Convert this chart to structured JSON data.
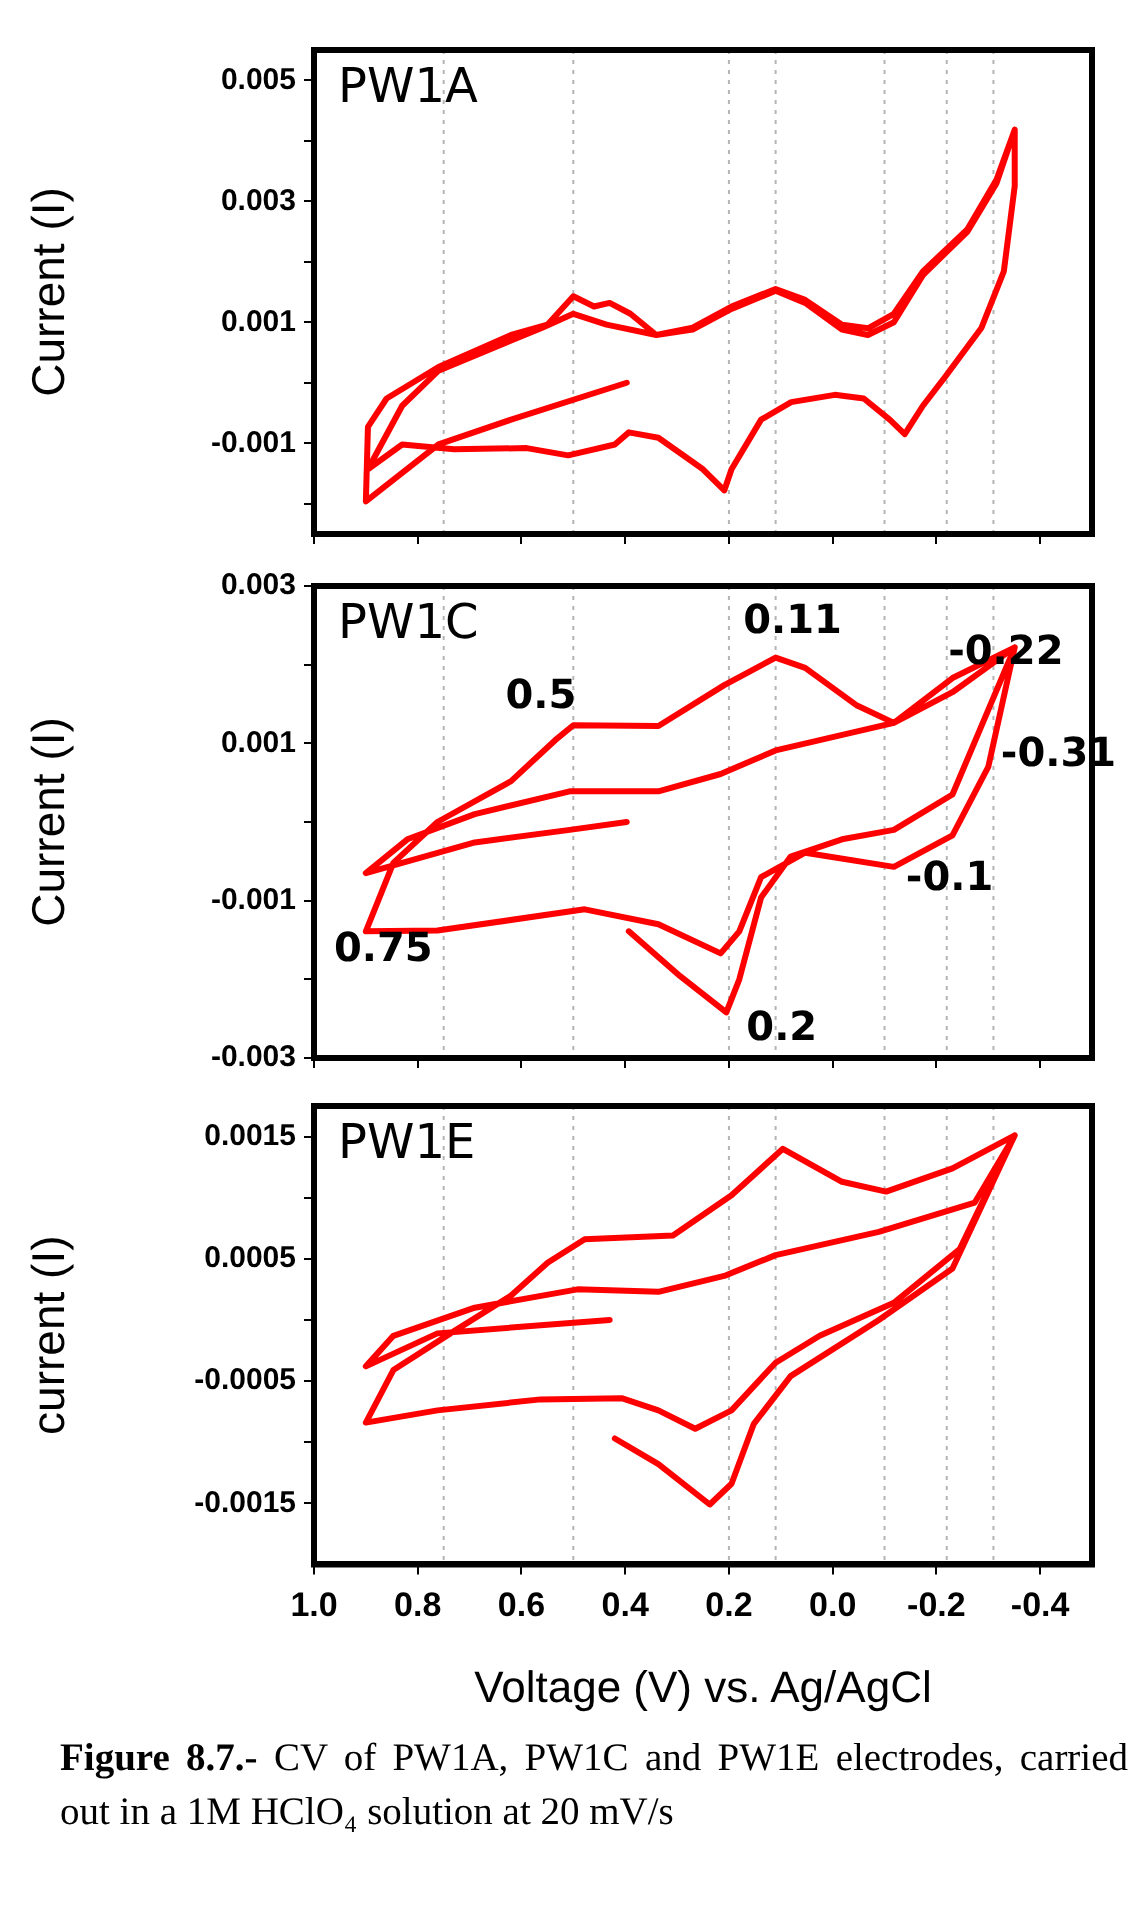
{
  "chart_data": [
    {
      "type": "line",
      "title": "PW1A",
      "ylabel": "Current (I)",
      "xlim": [
        1.0,
        -0.5
      ],
      "ylim": [
        -0.0025,
        0.0055
      ],
      "xticks": [
        1,
        0.8,
        0.6,
        0.4,
        0.2,
        0,
        -0.2,
        -0.4
      ],
      "yticks": [
        0.005,
        {
          "value": 0.004,
          "label": null
        },
        0.003,
        {
          "value": 0.002,
          "label": null
        },
        0.001,
        {
          "value": 0,
          "label": null
        },
        -0.001,
        {
          "value": -0.002,
          "label": null
        }
      ],
      "tick_labels": "y",
      "grid": false,
      "legend": false,
      "marker": "none",
      "line_style": "solid",
      "ref_lines": [
        {
          "axis": "x",
          "value": 0.75,
          "color": "#b4b4b4",
          "line_style": "dotted"
        },
        {
          "axis": "x",
          "value": 0.5,
          "color": "#b4b4b4",
          "line_style": "dotted"
        },
        {
          "axis": "x",
          "value": 0.2,
          "color": "#b4b4b4",
          "line_style": "dotted"
        },
        {
          "axis": "x",
          "value": 0.11,
          "color": "#b4b4b4",
          "line_style": "dotted"
        },
        {
          "axis": "x",
          "value": -0.1,
          "color": "#b4b4b4",
          "line_style": "dotted"
        },
        {
          "axis": "x",
          "value": -0.22,
          "color": "#b4b4b4",
          "line_style": "dotted"
        },
        {
          "axis": "x",
          "value": -0.31,
          "color": "#b4b4b4",
          "line_style": "dotted"
        }
      ],
      "series": [
        {
          "color": "#ff0000",
          "x": [
            0.397,
            0.62,
            0.76,
            0.9,
            0.896,
            0.86,
            0.76,
            0.62,
            0.55,
            0.5,
            0.46,
            0.43,
            0.39,
            0.34,
            0.27,
            0.195,
            0.11,
            0.053,
            -0.018,
            -0.068,
            -0.118,
            -0.174,
            -0.26,
            -0.316,
            -0.351,
            -0.351,
            -0.33,
            -0.287,
            -0.217,
            -0.174,
            -0.139,
            -0.11,
            -0.06,
            -0.004,
            0.08,
            0.138,
            0.195,
            0.209,
            0.25,
            0.336,
            0.393,
            0.42,
            0.51,
            0.59,
            0.73,
            0.83,
            0.896,
            0.83,
            0.76,
            0.56,
            0.5,
            0.436,
            0.34,
            0.27,
            0.195,
            0.11,
            0.053,
            -0.018,
            -0.068,
            -0.118,
            -0.174,
            -0.26,
            -0.316,
            -0.351
          ],
          "values": [
            0,
            -0.00061,
            -0.00102,
            -0.00196,
            -0.00073,
            -0.00026,
            0.00026,
            0.00079,
            0.00096,
            0.00143,
            0.00126,
            0.00132,
            0.00114,
            0.00079,
            0.00091,
            0.00126,
            0.00155,
            0.00137,
            0.00096,
            0.0009,
            0.00114,
            0.00184,
            0.00254,
            0.00336,
            0.00418,
            0.00325,
            0.00184,
            0.00091,
            0.0001,
            -0.00038,
            -0.00085,
            -0.00061,
            -0.00026,
            -0.0002,
            -0.00032,
            -0.00061,
            -0.00143,
            -0.00178,
            -0.00143,
            -0.00091,
            -0.00082,
            -0.00102,
            -0.0012,
            -0.00108,
            -0.0011,
            -0.00102,
            -0.00143,
            -0.00038,
            0.0002,
            0.00091,
            0.00114,
            0.00096,
            0.00079,
            0.00088,
            0.00122,
            0.00152,
            0.00132,
            0.00088,
            0.00079,
            0.001,
            0.00178,
            0.0025,
            0.0033,
            0.00418
          ]
        }
      ]
    },
    {
      "type": "line",
      "title": "PW1C",
      "ylabel": "Current (I)",
      "xlim": [
        1.0,
        -0.5
      ],
      "ylim": [
        -0.003,
        0.003
      ],
      "xticks": [
        1,
        0.8,
        0.6,
        0.4,
        0.2,
        0,
        -0.2,
        -0.4
      ],
      "yticks": [
        0.003,
        {
          "value": 0.002,
          "label": null
        },
        0.001,
        {
          "value": 0,
          "label": null
        },
        -0.001,
        {
          "value": -0.002,
          "label": null
        },
        -0.003
      ],
      "tick_labels": "y",
      "grid": false,
      "legend": false,
      "marker": "none",
      "line_style": "solid",
      "ref_lines": [
        {
          "axis": "x",
          "value": 0.75,
          "color": "#b4b4b4",
          "line_style": "dotted"
        },
        {
          "axis": "x",
          "value": 0.5,
          "color": "#b4b4b4",
          "line_style": "dotted"
        },
        {
          "axis": "x",
          "value": 0.2,
          "color": "#b4b4b4",
          "line_style": "dotted"
        },
        {
          "axis": "x",
          "value": 0.11,
          "color": "#b4b4b4",
          "line_style": "dotted"
        },
        {
          "axis": "x",
          "value": -0.1,
          "color": "#b4b4b4",
          "line_style": "dotted"
        },
        {
          "axis": "x",
          "value": -0.22,
          "color": "#b4b4b4",
          "line_style": "dotted"
        },
        {
          "axis": "x",
          "value": -0.31,
          "color": "#b4b4b4",
          "line_style": "dotted"
        }
      ],
      "annotations": [
        {
          "text": "0.5",
          "x": 0.5,
          "y": 0.00123
        },
        {
          "text": "0.11",
          "x": 0.11,
          "y": 0.00209
        },
        {
          "text": "-0.22",
          "x": -0.231,
          "y": 0.00183
        },
        {
          "text": "-0.31",
          "x": -0.3,
          "y": 0.0007
        },
        {
          "text": "-0.1",
          "x": -0.118,
          "y": -0.00057
        },
        {
          "text": "0.75",
          "x": 0.762,
          "y": -0.00138
        },
        {
          "text": "0.2",
          "x": 0.205,
          "y": -0.00242
        }
      ],
      "series": [
        {
          "color": "#ff0000",
          "x": [
            0.393,
            0.294,
            0.205,
            0.18,
            0.138,
            0.081,
            -0.018,
            -0.118,
            -0.231,
            -0.351,
            -0.231,
            -0.118,
            -0.047,
            0.053,
            0.11,
            0.209,
            0.336,
            0.5,
            0.535,
            0.62,
            0.762,
            0.847,
            0.9,
            0.762,
            0.478,
            0.336,
            0.216,
            0.18,
            0.138,
            0.053,
            -0.118,
            -0.231,
            -0.3,
            -0.351,
            -0.231,
            -0.118,
            0.11,
            0.216,
            0.336,
            0.507,
            0.69,
            0.82,
            0.9,
            0.69,
            0.507,
            0.397
          ],
          "values": [
            -0.00139,
            -0.00196,
            -0.00242,
            -0.002,
            -0.00096,
            -0.00044,
            -0.00022,
            -0.0001,
            0.00035,
            0.00222,
            0.00183,
            0.00126,
            0.00148,
            0.00196,
            0.00209,
            0.00174,
            0.00122,
            0.00123,
            0.00104,
            0.00052,
            0,
            -0.00052,
            -0.00139,
            -0.00138,
            -0.00111,
            -0.0013,
            -0.00167,
            -0.00139,
            -0.0007,
            -0.00039,
            -0.00057,
            -0.00017,
            0.0007,
            0.00222,
            0.00165,
            0.00126,
            0.00091,
            0.00061,
            0.00039,
            0.00039,
            0.0001,
            -0.00022,
            -0.00065,
            -0.00026,
            -0.0001,
            0
          ]
        }
      ]
    },
    {
      "type": "line",
      "title": "PW1E",
      "ylabel": "current (I)",
      "xlabel": "Voltage (V) vs. Ag/AgCl",
      "xlim": [
        1.0,
        -0.5
      ],
      "ylim": [
        -0.002,
        0.00175
      ],
      "xticks": [
        {
          "value": 1,
          "label": "1.0"
        },
        0.8,
        0.6,
        0.4,
        0.2,
        {
          "value": 0,
          "label": "0.0"
        },
        -0.2,
        -0.4
      ],
      "yticks": [
        0.0015,
        {
          "value": 0.001,
          "label": null
        },
        0.0005,
        {
          "value": 0,
          "label": null
        },
        -0.0005,
        {
          "value": -0.001,
          "label": null
        },
        -0.0015
      ],
      "grid": false,
      "legend": false,
      "marker": "none",
      "line_style": "solid",
      "ref_lines": [
        {
          "axis": "x",
          "value": 0.75,
          "color": "#b4b4b4",
          "line_style": "dotted"
        },
        {
          "axis": "x",
          "value": 0.5,
          "color": "#b4b4b4",
          "line_style": "dotted"
        },
        {
          "axis": "x",
          "value": 0.2,
          "color": "#b4b4b4",
          "line_style": "dotted"
        },
        {
          "axis": "x",
          "value": 0.11,
          "color": "#b4b4b4",
          "line_style": "dotted"
        },
        {
          "axis": "x",
          "value": -0.1,
          "color": "#b4b4b4",
          "line_style": "dotted"
        },
        {
          "axis": "x",
          "value": -0.22,
          "color": "#b4b4b4",
          "line_style": "dotted"
        },
        {
          "axis": "x",
          "value": -0.31,
          "color": "#b4b4b4",
          "line_style": "dotted"
        }
      ],
      "annotations": [
        "Figure 8.7.-",
        "CV of PW1A, PW1C and PW1E electrodes, carried out in a 1M HClO₄ solution at 20 mV/s"
      ],
      "series": [
        {
          "color": "#ff0000",
          "x": [
            0.42,
            0.336,
            0.237,
            0.195,
            0.152,
            0.081,
            -0.089,
            -0.231,
            -0.351,
            -0.231,
            -0.103,
            -0.018,
            0.096,
            0.195,
            0.308,
            0.478,
            0.549,
            0.62,
            0.733,
            0.847,
            0.9,
            0.762,
            0.563,
            0.407,
            0.336,
            0.265,
            0.195,
            0.11,
            0.025,
            -0.118,
            -0.245,
            -0.351,
            -0.274,
            -0.089,
            0.11,
            0.209,
            0.336,
            0.492,
            0.69,
            0.847,
            0.9,
            0.762,
            0.43
          ],
          "values": [
            -0.00097,
            -0.00118,
            -0.00151,
            -0.00134,
            -0.00085,
            -0.00046,
            0,
            0.00042,
            0.00151,
            0.00124,
            0.00105,
            0.00113,
            0.0014,
            0.00102,
            0.00069,
            0.00066,
            0.00047,
            0.0002,
            -0.0001,
            -0.00041,
            -0.00084,
            -0.00074,
            -0.00065,
            -0.00064,
            -0.00074,
            -0.00089,
            -0.00074,
            -0.00035,
            -0.00013,
            0.00014,
            0.00058,
            0.00151,
            0.00096,
            0.00072,
            0.00053,
            0.00036,
            0.00023,
            0.00025,
            0.0001,
            -0.00013,
            -0.00038,
            -0.00011,
            0
          ]
        }
      ]
    }
  ]
}
